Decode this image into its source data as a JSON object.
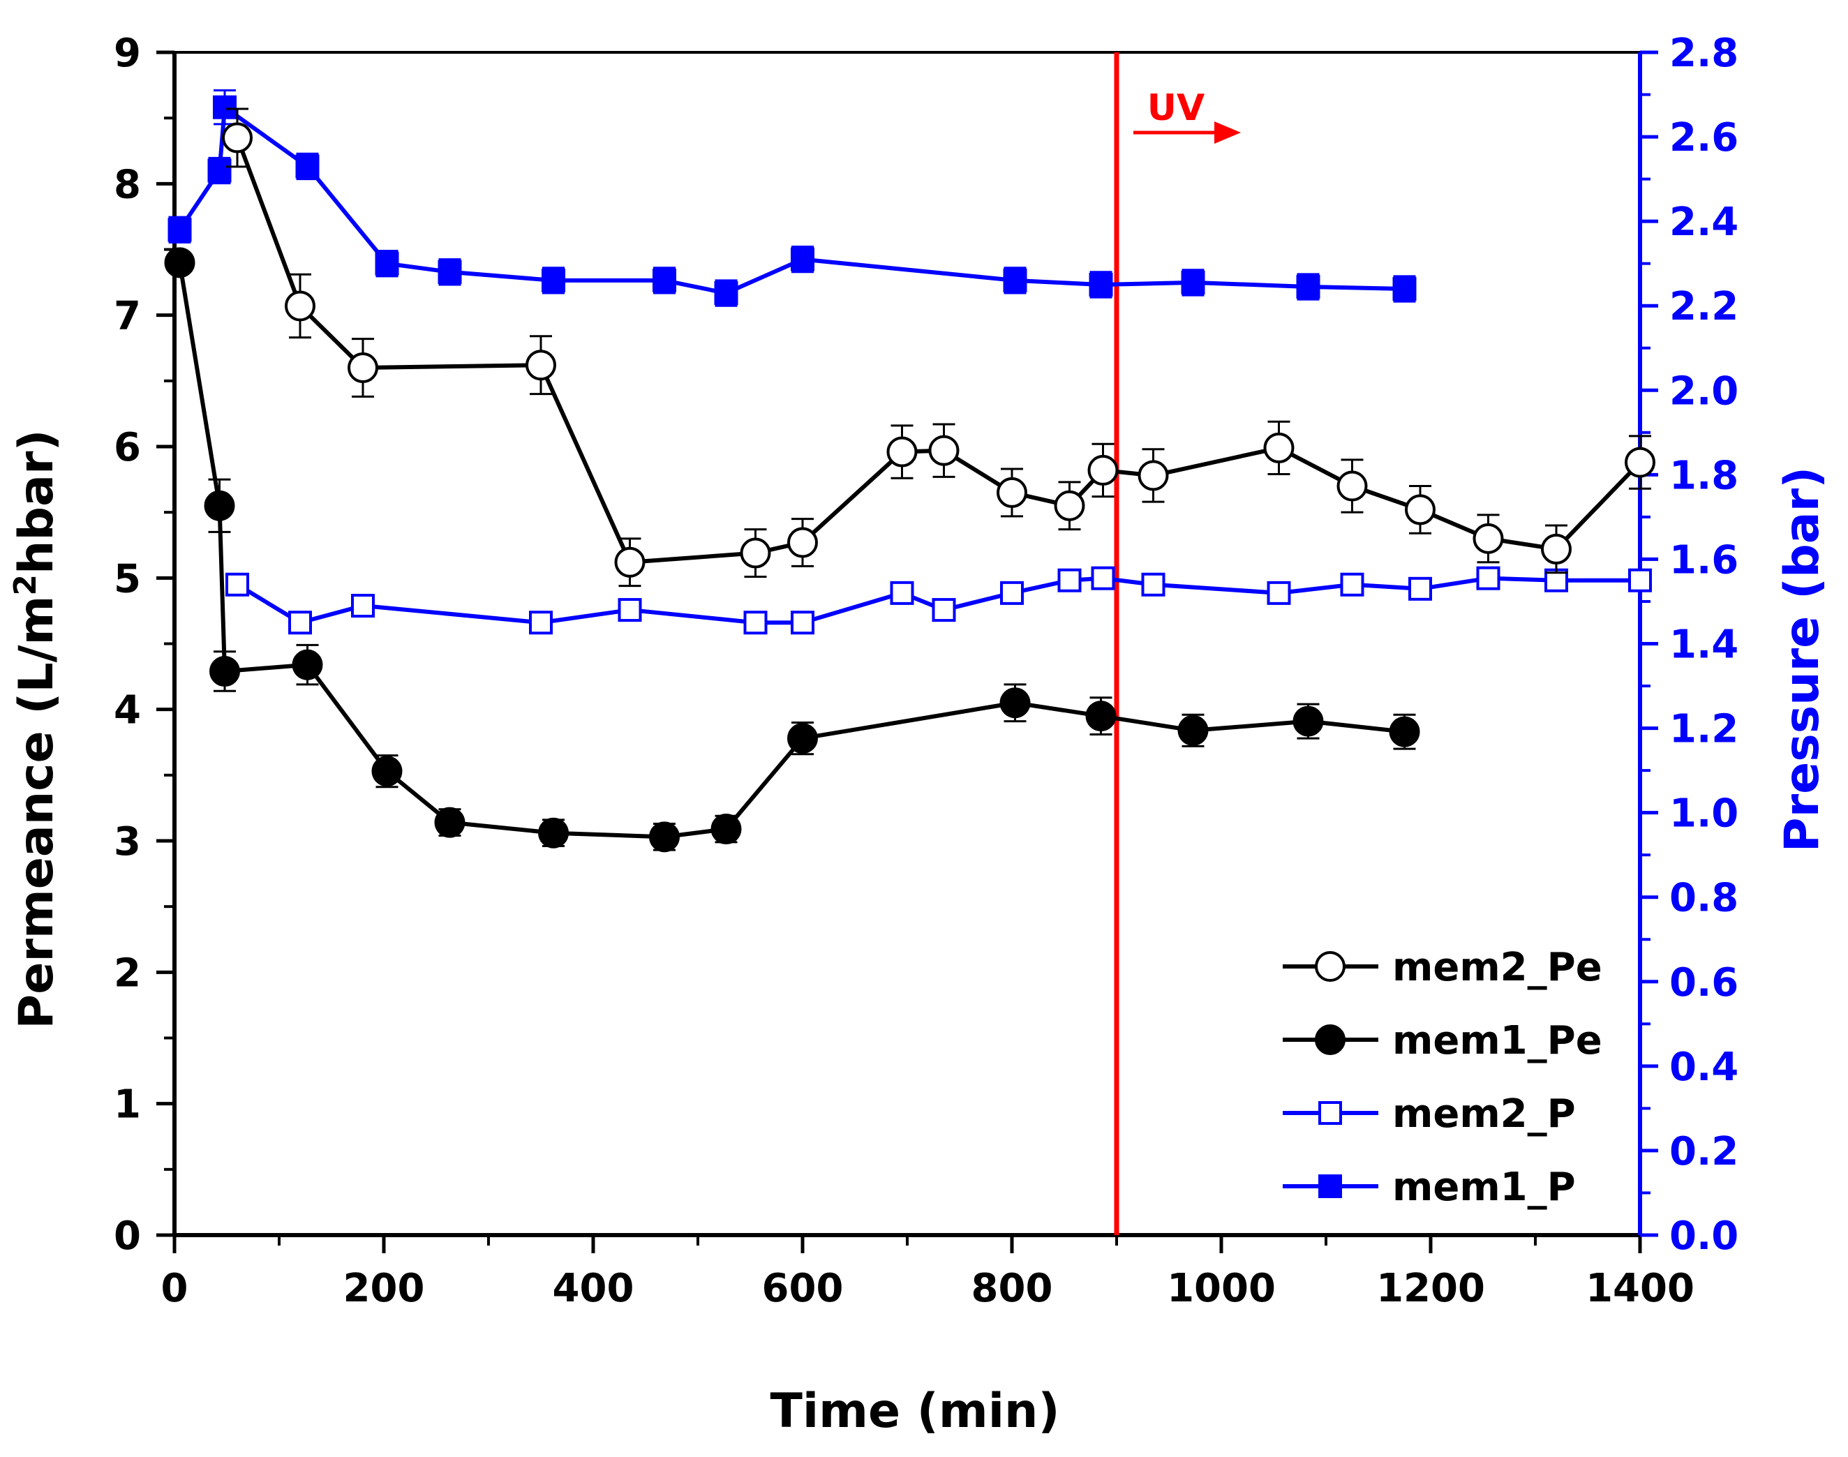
{
  "chart_data": {
    "type": "line",
    "xlabel": "Time (min)",
    "ylabel_left": "Permeance (L/m²hbar)",
    "ylabel_left_parts": {
      "pre": "Permeance (L/m",
      "sup": "2",
      "post": "hbar)"
    },
    "ylabel_right": "Pressure (bar)",
    "xlim": [
      0,
      1400
    ],
    "ylim_left": [
      0,
      9
    ],
    "ylim_right": [
      0,
      2.8
    ],
    "x_ticks": [
      "0",
      "200",
      "400",
      "600",
      "800",
      "1000",
      "1200",
      "1400"
    ],
    "y_left_ticks": [
      "0",
      "1",
      "2",
      "3",
      "4",
      "5",
      "6",
      "7",
      "8",
      "9"
    ],
    "y_right_ticks": [
      "0.0",
      "0.2",
      "0.4",
      "0.6",
      "0.8",
      "1.0",
      "1.2",
      "1.4",
      "1.6",
      "1.8",
      "2.0",
      "2.2",
      "2.4",
      "2.6",
      "2.8"
    ],
    "grid": false,
    "legend_position": "bottom-right",
    "annotations": [
      {
        "type": "vline",
        "x": 900,
        "color": "#ff0000",
        "label": "UV"
      }
    ],
    "series": [
      {
        "name": "mem2_Pe",
        "axis": "left",
        "marker": "circle",
        "filled": false,
        "color": "#000000",
        "x": [
          60,
          120,
          180,
          350,
          435,
          555,
          600,
          695,
          735,
          800,
          855,
          887,
          935,
          1055,
          1125,
          1190,
          1255,
          1320,
          1400
        ],
        "y": [
          8.35,
          7.07,
          6.6,
          6.62,
          5.12,
          5.19,
          5.27,
          5.96,
          5.97,
          5.65,
          5.55,
          5.82,
          5.78,
          5.99,
          5.7,
          5.52,
          5.3,
          5.22,
          5.88
        ],
        "err": [
          0.22,
          0.24,
          0.22,
          0.22,
          0.18,
          0.18,
          0.18,
          0.2,
          0.2,
          0.18,
          0.18,
          0.2,
          0.2,
          0.2,
          0.2,
          0.18,
          0.18,
          0.18,
          0.2
        ]
      },
      {
        "name": "mem1_Pe",
        "axis": "left",
        "marker": "circle",
        "filled": true,
        "color": "#000000",
        "x": [
          5,
          43,
          48,
          127,
          203,
          263,
          362,
          468,
          527,
          600,
          803,
          885,
          973,
          1083,
          1175
        ],
        "y": [
          7.4,
          5.55,
          4.29,
          4.34,
          3.53,
          3.14,
          3.06,
          3.03,
          3.09,
          3.78,
          4.05,
          3.95,
          3.84,
          3.91,
          3.83
        ],
        "err": [
          0.0,
          0.2,
          0.15,
          0.15,
          0.12,
          0.1,
          0.1,
          0.1,
          0.1,
          0.12,
          0.14,
          0.14,
          0.12,
          0.13,
          0.13
        ]
      },
      {
        "name": "mem2_P",
        "axis": "right",
        "marker": "square",
        "filled": false,
        "color": "#0000ff",
        "x": [
          60,
          120,
          180,
          350,
          435,
          555,
          600,
          695,
          735,
          800,
          855,
          887,
          935,
          1055,
          1125,
          1190,
          1255,
          1320,
          1400
        ],
        "y": [
          1.54,
          1.45,
          1.49,
          1.45,
          1.48,
          1.45,
          1.45,
          1.52,
          1.48,
          1.52,
          1.55,
          1.555,
          1.54,
          1.52,
          1.54,
          1.53,
          1.555,
          1.55,
          1.55
        ]
      },
      {
        "name": "mem1_P",
        "axis": "right",
        "marker": "square",
        "filled": true,
        "color": "#0000ff",
        "x": [
          5,
          43,
          48,
          127,
          203,
          263,
          362,
          468,
          527,
          600,
          803,
          885,
          973,
          1083,
          1175
        ],
        "y": [
          2.38,
          2.52,
          2.67,
          2.53,
          2.3,
          2.28,
          2.26,
          2.26,
          2.23,
          2.31,
          2.26,
          2.25,
          2.255,
          2.245,
          2.24
        ],
        "err": [
          0.03,
          0.03,
          0.04,
          0.03,
          0.03,
          0.03,
          0.03,
          0.03,
          0.03,
          0.03,
          0.03,
          0.03,
          0.03,
          0.03,
          0.03
        ]
      }
    ]
  }
}
